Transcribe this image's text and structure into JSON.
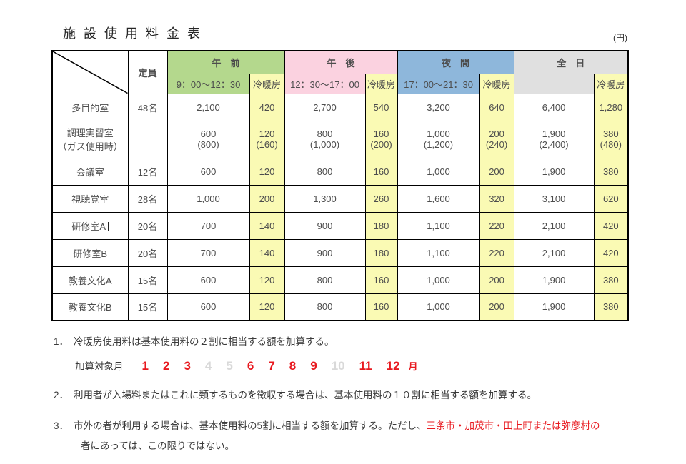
{
  "page": {
    "title": "施 設 使 用 料 金 表",
    "unit_note": "(円)"
  },
  "table": {
    "capacity_header": "定員",
    "aircon_label": "冷暖房",
    "groups": [
      {
        "label": "午　前",
        "time": "9：00～12：30"
      },
      {
        "label": "午　後",
        "time": "12：30～17：00"
      },
      {
        "label": "夜　間",
        "time": "17：00～21：30"
      },
      {
        "label": "全　日",
        "time": ""
      }
    ],
    "rows": [
      {
        "name": "多目的室",
        "capacity": "48名",
        "values": [
          "2,100",
          "420",
          "2,700",
          "540",
          "3,200",
          "640",
          "6,400",
          "1,280"
        ]
      },
      {
        "name": "調理実習室\n（ガス使用時）",
        "capacity": "",
        "values": [
          "600\n(800)",
          "120\n(160)",
          "800\n(1,000)",
          "160\n(200)",
          "1,000\n(1,200)",
          "200\n(240)",
          "1,900\n(2,400)",
          "380\n(480)"
        ]
      },
      {
        "name": "会議室",
        "capacity": "12名",
        "values": [
          "600",
          "120",
          "800",
          "160",
          "1,000",
          "200",
          "1,900",
          "380"
        ]
      },
      {
        "name": "視聴覚室",
        "capacity": "28名",
        "values": [
          "1,000",
          "200",
          "1,300",
          "260",
          "1,600",
          "320",
          "3,100",
          "620"
        ]
      },
      {
        "name": "研修室A",
        "capacity": "20名",
        "cursor": true,
        "values": [
          "700",
          "140",
          "900",
          "180",
          "1,100",
          "220",
          "2,100",
          "420"
        ]
      },
      {
        "name": "研修室B",
        "capacity": "20名",
        "values": [
          "700",
          "140",
          "900",
          "180",
          "1,100",
          "220",
          "2,100",
          "420"
        ]
      },
      {
        "name": "教養文化A",
        "capacity": "15名",
        "values": [
          "600",
          "120",
          "800",
          "160",
          "1,000",
          "200",
          "1,900",
          "380"
        ]
      },
      {
        "name": "教養文化B",
        "capacity": "15名",
        "values": [
          "600",
          "120",
          "800",
          "160",
          "1,000",
          "200",
          "1,900",
          "380"
        ]
      }
    ]
  },
  "notes": {
    "note1": {
      "num": "1．",
      "text": "冷暖房使用料は基本使用料の２割に相当する額を加算する。"
    },
    "months_label": "加算対象月",
    "months": [
      {
        "n": "1",
        "active": true
      },
      {
        "n": "2",
        "active": true
      },
      {
        "n": "3",
        "active": true
      },
      {
        "n": "4",
        "active": false
      },
      {
        "n": "5",
        "active": false
      },
      {
        "n": "6",
        "active": true
      },
      {
        "n": "7",
        "active": true
      },
      {
        "n": "8",
        "active": true
      },
      {
        "n": "9",
        "active": true
      },
      {
        "n": "10",
        "active": false
      },
      {
        "n": "11",
        "active": true
      },
      {
        "n": "12",
        "active": true
      }
    ],
    "month_suffix": "月",
    "note2": {
      "num": "2．",
      "text": "利用者が入場料またはこれに類するものを徴収する場合は、基本使用料の１０割に相当する額を加算する。"
    },
    "note3": {
      "num": "3．",
      "text_before": "市外の者が利用する場合は、基本使用料の5割に相当する額を加算する。ただし、",
      "red_text": "三条市・加茂市・田上町または弥彦村の",
      "line2": "者にあっては、この限りではない。"
    }
  },
  "colors": {
    "group_am": "#b4d88d",
    "group_pm": "#fbd2e0",
    "group_night": "#8eb7db",
    "group_all": "#e0e0e0",
    "aircon_yellow": "#fafab4",
    "accent_red": "#e8191f",
    "inactive_gray": "#d9d9d9"
  }
}
